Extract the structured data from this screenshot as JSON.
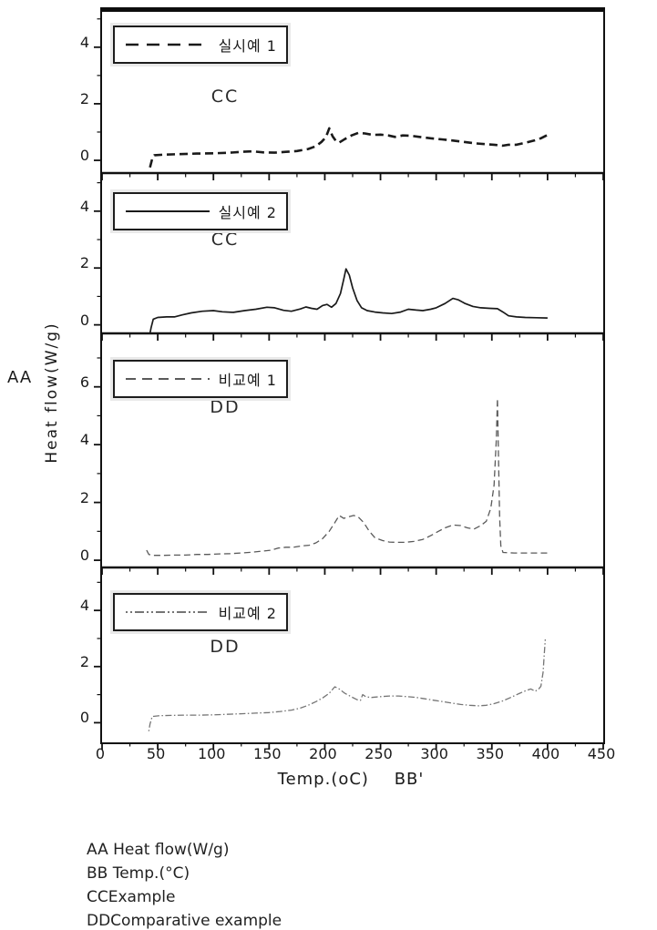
{
  "colors": {
    "ink": "#1a1a1a",
    "gray_line": "#5a5a5a",
    "light_line": "#757575",
    "background": "#ffffff"
  },
  "axis": {
    "y_label": "Heat flow(W/g)",
    "y_marker": "AA",
    "x_label": "Temp.(oC)",
    "x_marker": "BB'",
    "xlim": [
      0,
      450
    ],
    "x_ticks_major": [
      0,
      50,
      100,
      150,
      200,
      250,
      300,
      350,
      400,
      450
    ],
    "x_minor_step": 25
  },
  "footer": {
    "lines": [
      "AA Heat flow(W/g)",
      "BB Temp.(°C)",
      "CCExample",
      "DDComparative example"
    ]
  },
  "chart_data": [
    {
      "type": "line",
      "legend": "실시예 1",
      "group_label": "CC",
      "line_style": "bold-dashed",
      "xlabel": "Temp.(oC)",
      "ylabel": "Heat flow(W/g)",
      "xlim": [
        0,
        450
      ],
      "ylim": [
        -0.45,
        5.25
      ],
      "yticks_major": [
        0,
        2,
        4
      ],
      "yticks_minor": [
        1,
        3,
        5
      ],
      "points": [
        [
          43,
          -0.25
        ],
        [
          45,
          0.05
        ],
        [
          47,
          0.18
        ],
        [
          55,
          0.2
        ],
        [
          70,
          0.22
        ],
        [
          85,
          0.24
        ],
        [
          100,
          0.25
        ],
        [
          115,
          0.27
        ],
        [
          125,
          0.3
        ],
        [
          135,
          0.32
        ],
        [
          145,
          0.28
        ],
        [
          155,
          0.27
        ],
        [
          165,
          0.3
        ],
        [
          175,
          0.33
        ],
        [
          185,
          0.4
        ],
        [
          192,
          0.5
        ],
        [
          197,
          0.65
        ],
        [
          201,
          0.82
        ],
        [
          204,
          1.13
        ],
        [
          207,
          0.85
        ],
        [
          210,
          0.68
        ],
        [
          213,
          0.63
        ],
        [
          218,
          0.75
        ],
        [
          224,
          0.88
        ],
        [
          230,
          0.97
        ],
        [
          236,
          0.95
        ],
        [
          243,
          0.9
        ],
        [
          250,
          0.91
        ],
        [
          257,
          0.88
        ],
        [
          263,
          0.83
        ],
        [
          270,
          0.88
        ],
        [
          277,
          0.87
        ],
        [
          285,
          0.83
        ],
        [
          295,
          0.78
        ],
        [
          305,
          0.74
        ],
        [
          315,
          0.7
        ],
        [
          325,
          0.65
        ],
        [
          335,
          0.6
        ],
        [
          345,
          0.57
        ],
        [
          352,
          0.55
        ],
        [
          360,
          0.52
        ],
        [
          365,
          0.55
        ],
        [
          372,
          0.55
        ],
        [
          380,
          0.62
        ],
        [
          388,
          0.7
        ],
        [
          394,
          0.78
        ],
        [
          400,
          0.9
        ]
      ]
    },
    {
      "type": "line",
      "legend": "실시예 2",
      "group_label": "CC",
      "line_style": "solid",
      "xlabel": "Temp.(oC)",
      "ylabel": "Heat flow(W/g)",
      "xlim": [
        0,
        450
      ],
      "ylim": [
        -0.3,
        5.34
      ],
      "yticks_major": [
        0,
        2,
        4
      ],
      "yticks_minor": [
        1,
        3,
        5
      ],
      "points": [
        [
          43,
          -0.3
        ],
        [
          44,
          -0.1
        ],
        [
          46,
          0.2
        ],
        [
          50,
          0.26
        ],
        [
          58,
          0.28
        ],
        [
          65,
          0.28
        ],
        [
          72,
          0.35
        ],
        [
          80,
          0.42
        ],
        [
          90,
          0.48
        ],
        [
          100,
          0.5
        ],
        [
          108,
          0.46
        ],
        [
          118,
          0.44
        ],
        [
          128,
          0.5
        ],
        [
          138,
          0.55
        ],
        [
          148,
          0.62
        ],
        [
          155,
          0.6
        ],
        [
          163,
          0.51
        ],
        [
          170,
          0.48
        ],
        [
          178,
          0.56
        ],
        [
          183,
          0.63
        ],
        [
          188,
          0.58
        ],
        [
          193,
          0.55
        ],
        [
          198,
          0.68
        ],
        [
          202,
          0.72
        ],
        [
          206,
          0.62
        ],
        [
          210,
          0.75
        ],
        [
          214,
          1.1
        ],
        [
          217,
          1.6
        ],
        [
          219,
          1.97
        ],
        [
          222,
          1.75
        ],
        [
          225,
          1.3
        ],
        [
          229,
          0.85
        ],
        [
          233,
          0.6
        ],
        [
          238,
          0.5
        ],
        [
          245,
          0.45
        ],
        [
          252,
          0.42
        ],
        [
          260,
          0.4
        ],
        [
          268,
          0.45
        ],
        [
          275,
          0.55
        ],
        [
          282,
          0.52
        ],
        [
          288,
          0.5
        ],
        [
          295,
          0.55
        ],
        [
          300,
          0.6
        ],
        [
          308,
          0.75
        ],
        [
          315,
          0.93
        ],
        [
          320,
          0.88
        ],
        [
          326,
          0.75
        ],
        [
          333,
          0.65
        ],
        [
          340,
          0.6
        ],
        [
          348,
          0.58
        ],
        [
          355,
          0.57
        ],
        [
          360,
          0.45
        ],
        [
          365,
          0.32
        ],
        [
          372,
          0.28
        ],
        [
          380,
          0.26
        ],
        [
          390,
          0.25
        ],
        [
          400,
          0.24
        ]
      ]
    },
    {
      "type": "line",
      "legend": "비교예 1",
      "group_label": "DD",
      "line_style": "thin-dashed",
      "xlabel": "Temp.(oC)",
      "ylabel": "Heat flow(W/g)",
      "xlim": [
        0,
        450
      ],
      "ylim": [
        -0.25,
        7.85
      ],
      "yticks_major": [
        0,
        2,
        4,
        6
      ],
      "yticks_minor": [
        1,
        3,
        5,
        7
      ],
      "points": [
        [
          40,
          0.35
        ],
        [
          42,
          0.2
        ],
        [
          46,
          0.17
        ],
        [
          55,
          0.17
        ],
        [
          65,
          0.18
        ],
        [
          75,
          0.18
        ],
        [
          85,
          0.2
        ],
        [
          95,
          0.2
        ],
        [
          105,
          0.22
        ],
        [
          115,
          0.23
        ],
        [
          125,
          0.25
        ],
        [
          135,
          0.28
        ],
        [
          145,
          0.32
        ],
        [
          152,
          0.35
        ],
        [
          158,
          0.42
        ],
        [
          165,
          0.45
        ],
        [
          172,
          0.45
        ],
        [
          180,
          0.5
        ],
        [
          186,
          0.52
        ],
        [
          192,
          0.6
        ],
        [
          198,
          0.75
        ],
        [
          204,
          1.0
        ],
        [
          209,
          1.3
        ],
        [
          213,
          1.55
        ],
        [
          217,
          1.45
        ],
        [
          221,
          1.5
        ],
        [
          226,
          1.55
        ],
        [
          230,
          1.5
        ],
        [
          235,
          1.3
        ],
        [
          240,
          1.0
        ],
        [
          245,
          0.78
        ],
        [
          252,
          0.68
        ],
        [
          258,
          0.63
        ],
        [
          265,
          0.62
        ],
        [
          272,
          0.62
        ],
        [
          280,
          0.65
        ],
        [
          288,
          0.72
        ],
        [
          295,
          0.85
        ],
        [
          302,
          1.0
        ],
        [
          308,
          1.12
        ],
        [
          315,
          1.22
        ],
        [
          322,
          1.2
        ],
        [
          328,
          1.12
        ],
        [
          334,
          1.08
        ],
        [
          340,
          1.2
        ],
        [
          345,
          1.35
        ],
        [
          349,
          1.8
        ],
        [
          352,
          2.6
        ],
        [
          354,
          4.2
        ],
        [
          355,
          5.6
        ],
        [
          356,
          3.5
        ],
        [
          357,
          1.5
        ],
        [
          358,
          0.5
        ],
        [
          360,
          0.27
        ],
        [
          370,
          0.25
        ],
        [
          385,
          0.25
        ],
        [
          400,
          0.25
        ]
      ]
    },
    {
      "type": "line",
      "legend": "비교예 2",
      "group_label": "DD",
      "line_style": "dash-dot",
      "xlabel": "Temp.(oC)",
      "ylabel": "Heat flow(W/g)",
      "xlim": [
        0,
        450
      ],
      "ylim": [
        -0.7,
        5.53
      ],
      "yticks_major": [
        0,
        2,
        4
      ],
      "yticks_minor": [
        1,
        3,
        5
      ],
      "points": [
        [
          42,
          -0.3
        ],
        [
          43,
          -0.05
        ],
        [
          45,
          0.22
        ],
        [
          52,
          0.25
        ],
        [
          62,
          0.26
        ],
        [
          75,
          0.27
        ],
        [
          88,
          0.27
        ],
        [
          100,
          0.28
        ],
        [
          112,
          0.3
        ],
        [
          125,
          0.32
        ],
        [
          138,
          0.34
        ],
        [
          150,
          0.36
        ],
        [
          160,
          0.4
        ],
        [
          170,
          0.45
        ],
        [
          178,
          0.52
        ],
        [
          185,
          0.62
        ],
        [
          192,
          0.75
        ],
        [
          198,
          0.88
        ],
        [
          204,
          1.05
        ],
        [
          209,
          1.28
        ],
        [
          213,
          1.2
        ],
        [
          218,
          1.05
        ],
        [
          224,
          0.92
        ],
        [
          229,
          0.82
        ],
        [
          232,
          0.8
        ],
        [
          234,
          1.0
        ],
        [
          237,
          0.92
        ],
        [
          242,
          0.9
        ],
        [
          250,
          0.93
        ],
        [
          258,
          0.95
        ],
        [
          266,
          0.95
        ],
        [
          274,
          0.93
        ],
        [
          282,
          0.9
        ],
        [
          290,
          0.85
        ],
        [
          298,
          0.8
        ],
        [
          306,
          0.75
        ],
        [
          314,
          0.7
        ],
        [
          322,
          0.65
        ],
        [
          330,
          0.62
        ],
        [
          338,
          0.6
        ],
        [
          345,
          0.62
        ],
        [
          352,
          0.68
        ],
        [
          360,
          0.78
        ],
        [
          368,
          0.92
        ],
        [
          375,
          1.05
        ],
        [
          381,
          1.15
        ],
        [
          385,
          1.2
        ],
        [
          389,
          1.12
        ],
        [
          392,
          1.2
        ],
        [
          394,
          1.3
        ],
        [
          396,
          1.8
        ],
        [
          397,
          2.4
        ],
        [
          398,
          2.97
        ]
      ]
    }
  ]
}
